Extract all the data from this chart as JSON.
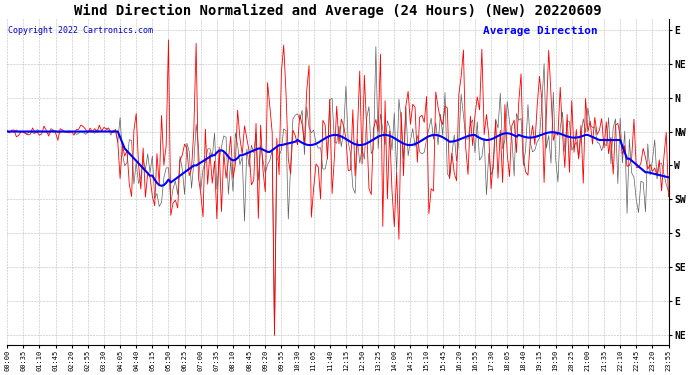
{
  "title": "Wind Direction Normalized and Average (24 Hours) (New) 20220609",
  "copyright": "Copyright 2022 Cartronics.com",
  "legend_avg": "Average Direction",
  "background_color": "#ffffff",
  "plot_bg_color": "#ffffff",
  "grid_color": "#aaaaaa",
  "ytick_labels": [
    "E",
    "NE",
    "N",
    "NW",
    "W",
    "SW",
    "S",
    "SE",
    "E",
    "NE"
  ],
  "ytick_values": [
    0,
    1,
    2,
    3,
    4,
    5,
    6,
    7,
    8,
    9
  ],
  "title_fontsize": 10,
  "copyright_fontsize": 6,
  "legend_fontsize": 8,
  "xtick_fontsize": 5,
  "ytick_fontsize": 7,
  "red_color": "#ff0000",
  "blue_color": "#0000ff",
  "gray_color": "#606060",
  "copyright_color": "#0000cc"
}
